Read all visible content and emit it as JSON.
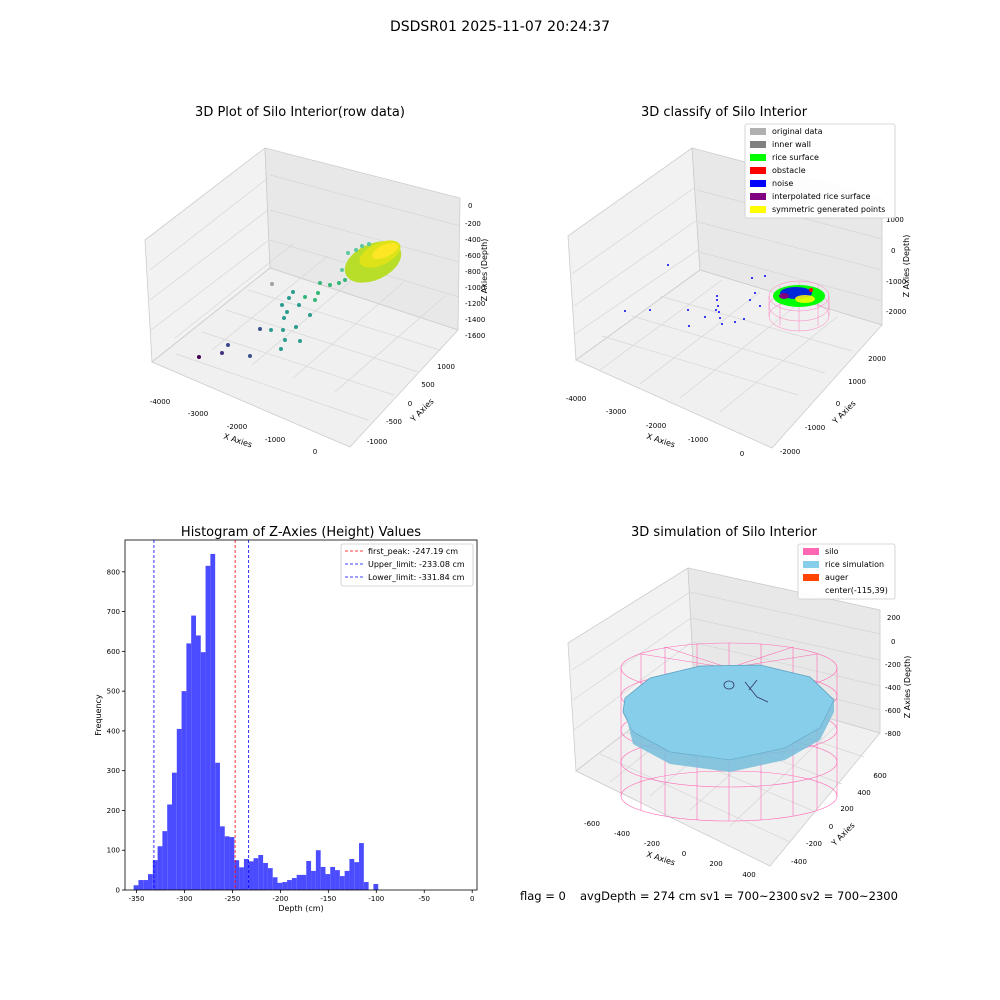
{
  "figure_title": "DSDSR01 2025-11-07 20:24:37",
  "footer": {
    "flag": "flag = 0",
    "avg_depth": "avgDepth = 274 cm",
    "sv1": "sv1 = 700~2300",
    "sv2": "sv2 = 700~2300"
  },
  "colors": {
    "hist_bar": "#4b4bff",
    "peak_line": "#ff0000",
    "limit_line": "#0000ff",
    "pane": "#f2f2f2",
    "grid": "#d9d9d9",
    "silo": "#ff69b4",
    "rice": "#87ceeb",
    "auger": "#ff4500"
  },
  "chart_data": [
    {
      "type": "scatter",
      "subtype": "3d",
      "title": "3D Plot of Silo Interior(row data)",
      "xlabel": "X Axies",
      "ylabel": "Y Axies",
      "zlabel": "Z Axies (Depth)",
      "x_ticks": [
        "-4000",
        "-3000",
        "-2000",
        "-1000",
        "0"
      ],
      "y_ticks": [
        "-1000",
        "-500",
        "0",
        "500",
        "1000"
      ],
      "z_ticks": [
        "-1600",
        "-1400",
        "-1200",
        "-1000",
        "-800",
        "-600",
        "-400",
        "-200",
        "0"
      ],
      "colormap": "viridis",
      "grid": true
    },
    {
      "type": "scatter",
      "subtype": "3d",
      "title": "3D classify of Silo Interior",
      "xlabel": "X Axies",
      "ylabel": "Y Axies",
      "zlabel": "Z Axies (Depth)",
      "x_ticks": [
        "-4000",
        "-3000",
        "-2000",
        "-1000",
        "0"
      ],
      "y_ticks": [
        "-2000",
        "-1000",
        "0",
        "1000",
        "2000"
      ],
      "z_ticks": [
        "-2000",
        "-1000",
        "0",
        "1000"
      ],
      "legend": [
        {
          "label": "original data",
          "color": "#b0b0b0"
        },
        {
          "label": "inner wall",
          "color": "#808080"
        },
        {
          "label": "rice surface",
          "color": "#00ff00"
        },
        {
          "label": "obstacle",
          "color": "#ff0000"
        },
        {
          "label": "noise",
          "color": "#0000ff"
        },
        {
          "label": "interpolated rice surface",
          "color": "#800080"
        },
        {
          "label": "symmetric generated points",
          "color": "#ffff00"
        }
      ],
      "legend_position": "top-right",
      "grid": true
    },
    {
      "type": "bar",
      "subtype": "histogram",
      "title": "Histogram of Z-Axies (Height) Values",
      "xlabel": "Depth (cm)",
      "ylabel": "Frequency",
      "xlim": [
        -362,
        5
      ],
      "ylim": [
        0,
        880
      ],
      "x_ticks": [
        -350,
        -300,
        -250,
        -200,
        -150,
        -100,
        -50,
        0
      ],
      "y_ticks": [
        0,
        100,
        200,
        300,
        400,
        500,
        600,
        700,
        800
      ],
      "bins": [
        {
          "start": -353,
          "end": -348,
          "value": 12
        },
        {
          "start": -348,
          "end": -343,
          "value": 25
        },
        {
          "start": -343,
          "end": -338,
          "value": 25
        },
        {
          "start": -338,
          "end": -333,
          "value": 40
        },
        {
          "start": -333,
          "end": -328,
          "value": 75
        },
        {
          "start": -328,
          "end": -323,
          "value": 110
        },
        {
          "start": -323,
          "end": -318,
          "value": 148
        },
        {
          "start": -318,
          "end": -313,
          "value": 215
        },
        {
          "start": -313,
          "end": -308,
          "value": 295
        },
        {
          "start": -308,
          "end": -303,
          "value": 405
        },
        {
          "start": -303,
          "end": -298,
          "value": 500
        },
        {
          "start": -298,
          "end": -293,
          "value": 620
        },
        {
          "start": -293,
          "end": -288,
          "value": 690
        },
        {
          "start": -288,
          "end": -283,
          "value": 640
        },
        {
          "start": -283,
          "end": -278,
          "value": 598
        },
        {
          "start": -278,
          "end": -273,
          "value": 815
        },
        {
          "start": -273,
          "end": -268,
          "value": 845
        },
        {
          "start": -268,
          "end": -263,
          "value": 320
        },
        {
          "start": -263,
          "end": -258,
          "value": 160
        },
        {
          "start": -258,
          "end": -253,
          "value": 135
        },
        {
          "start": -253,
          "end": -248,
          "value": 133
        },
        {
          "start": -248,
          "end": -243,
          "value": 75
        },
        {
          "start": -243,
          "end": -238,
          "value": 57
        },
        {
          "start": -238,
          "end": -233,
          "value": 78
        },
        {
          "start": -233,
          "end": -228,
          "value": 72
        },
        {
          "start": -228,
          "end": -223,
          "value": 80
        },
        {
          "start": -223,
          "end": -218,
          "value": 88
        },
        {
          "start": -218,
          "end": -213,
          "value": 68
        },
        {
          "start": -213,
          "end": -208,
          "value": 55
        },
        {
          "start": -208,
          "end": -203,
          "value": 32
        },
        {
          "start": -203,
          "end": -198,
          "value": 18
        },
        {
          "start": -198,
          "end": -193,
          "value": 20
        },
        {
          "start": -193,
          "end": -188,
          "value": 25
        },
        {
          "start": -188,
          "end": -183,
          "value": 30
        },
        {
          "start": -183,
          "end": -178,
          "value": 38
        },
        {
          "start": -178,
          "end": -173,
          "value": 38
        },
        {
          "start": -173,
          "end": -168,
          "value": 73
        },
        {
          "start": -168,
          "end": -163,
          "value": 48
        },
        {
          "start": -163,
          "end": -158,
          "value": 100
        },
        {
          "start": -158,
          "end": -153,
          "value": 58
        },
        {
          "start": -153,
          "end": -148,
          "value": 40
        },
        {
          "start": -148,
          "end": -143,
          "value": 58
        },
        {
          "start": -143,
          "end": -138,
          "value": 50
        },
        {
          "start": -138,
          "end": -133,
          "value": 35
        },
        {
          "start": -133,
          "end": -128,
          "value": 48
        },
        {
          "start": -128,
          "end": -123,
          "value": 78
        },
        {
          "start": -123,
          "end": -118,
          "value": 70
        },
        {
          "start": -118,
          "end": -113,
          "value": 118
        },
        {
          "start": -113,
          "end": -108,
          "value": 20
        },
        {
          "start": -108,
          "end": -103,
          "value": 0
        },
        {
          "start": -103,
          "end": -98,
          "value": 15
        }
      ],
      "vlines": [
        {
          "label": "first_peak: -247.19 cm",
          "x": -247.19,
          "color": "#ff0000"
        },
        {
          "label": "Upper_limit: -233.08 cm",
          "x": -233.08,
          "color": "#0000ff"
        },
        {
          "label": "Lower_limit: -331.84 cm",
          "x": -331.84,
          "color": "#0000ff"
        }
      ],
      "legend_position": "top-right",
      "grid": false
    },
    {
      "type": "scatter",
      "subtype": "3d",
      "title": "3D simulation of Silo Interior",
      "xlabel": "X Axies",
      "ylabel": "Y Axies",
      "zlabel": "Z Axies (Depth)",
      "x_ticks": [
        "-600",
        "-400",
        "-200",
        "0",
        "200",
        "400"
      ],
      "y_ticks": [
        "-400",
        "-200",
        "0",
        "200",
        "400",
        "600"
      ],
      "z_ticks": [
        "-800",
        "-600",
        "-400",
        "-200",
        "0",
        "200"
      ],
      "legend": [
        {
          "label": "silo",
          "color": "#ff69b4"
        },
        {
          "label": "rice simulation",
          "color": "#87ceeb"
        },
        {
          "label": "auger",
          "color": "#ff4500"
        },
        {
          "label": "center(-115,39)",
          "color": ""
        }
      ],
      "legend_position": "top-right",
      "grid": true
    }
  ]
}
